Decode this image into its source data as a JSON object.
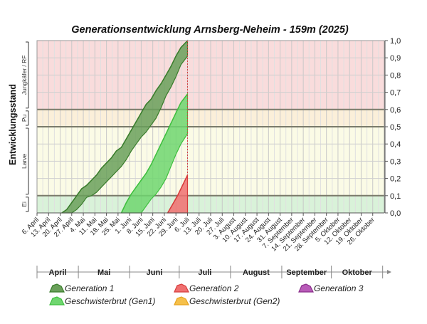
{
  "chart_data": {
    "type": "area",
    "title": "Generationsentwicklung Arnsberg-Neheim - 159m (2025)",
    "ylabel": "Entwicklungsstand",
    "stage_labels": [
      "Ei",
      "Larve",
      "Pu",
      "Jungkäfer / RF"
    ],
    "stage_bands": [
      {
        "label": "Ei",
        "from": 0.0,
        "to": 0.1,
        "color": "#d9f2d9"
      },
      {
        "label": "Larve",
        "from": 0.1,
        "to": 0.5,
        "color": "#fbfbe6"
      },
      {
        "label": "Pu",
        "from": 0.5,
        "to": 0.6,
        "color": "#fbefd9"
      },
      {
        "label": "Jungkäfer / RF",
        "from": 0.6,
        "to": 1.0,
        "color": "#f9dcdc"
      }
    ],
    "ylim": [
      0,
      1
    ],
    "y_ticks": [
      "0,0",
      "0,1",
      "0,2",
      "0,3",
      "0,4",
      "0,5",
      "0,6",
      "0,7",
      "0,8",
      "0,9",
      "1,0"
    ],
    "x_start": "2025-04-06",
    "x_end": "2025-11-02",
    "x_tick_labels": [
      "6. April",
      "13. April",
      "20. April",
      "27. April",
      "4. Mai",
      "11. Mai",
      "18. Mai",
      "25. Mai",
      "1. Juni",
      "8. Juni",
      "15. Juni",
      "22. Juni",
      "29. Juni",
      "6. Juli",
      "13. Juli",
      "20. Juli",
      "27. Juli",
      "3. August",
      "10. August",
      "17. August",
      "24. August",
      "31. August",
      "7. September",
      "14. September",
      "21. September",
      "28. September",
      "5. Oktober",
      "12. Oktober",
      "19. Oktober",
      "26. Oktober"
    ],
    "months": [
      "April",
      "Mai",
      "Juni",
      "Juli",
      "August",
      "September",
      "Oktober"
    ],
    "today": "2025-07-06",
    "grid": true,
    "series": [
      {
        "name": "Generation 1",
        "color": "#3a7d2c",
        "fill": "#6aa05a",
        "x": [
          "2025-04-21",
          "2025-04-24",
          "2025-04-27",
          "2025-04-30",
          "2025-05-03",
          "2025-05-06",
          "2025-05-09",
          "2025-05-12",
          "2025-05-15",
          "2025-05-18",
          "2025-05-21",
          "2025-05-24",
          "2025-05-27",
          "2025-05-30",
          "2025-06-02",
          "2025-06-05",
          "2025-06-08",
          "2025-06-11",
          "2025-06-14",
          "2025-06-17",
          "2025-06-20",
          "2025-06-23",
          "2025-06-26",
          "2025-06-29",
          "2025-07-02",
          "2025-07-06"
        ],
        "upper": [
          0.0,
          0.02,
          0.06,
          0.1,
          0.14,
          0.16,
          0.19,
          0.22,
          0.26,
          0.29,
          0.32,
          0.36,
          0.38,
          0.43,
          0.48,
          0.53,
          0.58,
          0.63,
          0.66,
          0.71,
          0.75,
          0.8,
          0.85,
          0.91,
          0.96,
          1.0
        ],
        "lower": [
          0.0,
          0.0,
          0.0,
          0.02,
          0.05,
          0.09,
          0.1,
          0.12,
          0.15,
          0.18,
          0.21,
          0.24,
          0.27,
          0.31,
          0.36,
          0.4,
          0.44,
          0.47,
          0.51,
          0.55,
          0.61,
          0.68,
          0.73,
          0.79,
          0.86,
          0.91
        ]
      },
      {
        "name": "Geschwisterbrut (Gen1)",
        "color": "#3fbf3f",
        "fill": "#6fd66f",
        "x": [
          "2025-05-27",
          "2025-05-30",
          "2025-06-02",
          "2025-06-05",
          "2025-06-08",
          "2025-06-11",
          "2025-06-14",
          "2025-06-17",
          "2025-06-20",
          "2025-06-23",
          "2025-06-26",
          "2025-06-29",
          "2025-07-02",
          "2025-07-06"
        ],
        "upper": [
          0.0,
          0.06,
          0.11,
          0.15,
          0.19,
          0.23,
          0.28,
          0.34,
          0.4,
          0.46,
          0.52,
          0.58,
          0.64,
          0.69
        ],
        "lower": [
          0.0,
          0.0,
          0.0,
          0.0,
          0.0,
          0.04,
          0.08,
          0.11,
          0.15,
          0.2,
          0.27,
          0.34,
          0.4,
          0.46
        ]
      },
      {
        "name": "Generation 2",
        "color": "#d73c3c",
        "fill": "#f07070",
        "x": [
          "2025-06-24",
          "2025-06-27",
          "2025-06-30",
          "2025-07-03",
          "2025-07-06"
        ],
        "upper": [
          0.0,
          0.05,
          0.1,
          0.16,
          0.22
        ],
        "lower": [
          0.0,
          0.0,
          0.0,
          0.0,
          0.0
        ]
      },
      {
        "name": "Generation 3",
        "color": "#8a2e8a",
        "fill": "#b85bb8",
        "x": [],
        "upper": [],
        "lower": []
      },
      {
        "name": "Geschwisterbrut (Gen2)",
        "color": "#e6a21e",
        "fill": "#f5c04a",
        "x": [],
        "upper": [],
        "lower": []
      }
    ],
    "legend": [
      {
        "name": "Generation 1",
        "color": "#3a7d2c",
        "fill": "#6aa05a"
      },
      {
        "name": "Generation 2",
        "color": "#d73c3c",
        "fill": "#f07070"
      },
      {
        "name": "Generation 3",
        "color": "#8a2e8a",
        "fill": "#b85bb8"
      },
      {
        "name": "Geschwisterbrut (Gen1)",
        "color": "#3fbf3f",
        "fill": "#6fd66f"
      },
      {
        "name": "Geschwisterbrut (Gen2)",
        "color": "#e6a21e",
        "fill": "#f5c04a"
      }
    ]
  }
}
